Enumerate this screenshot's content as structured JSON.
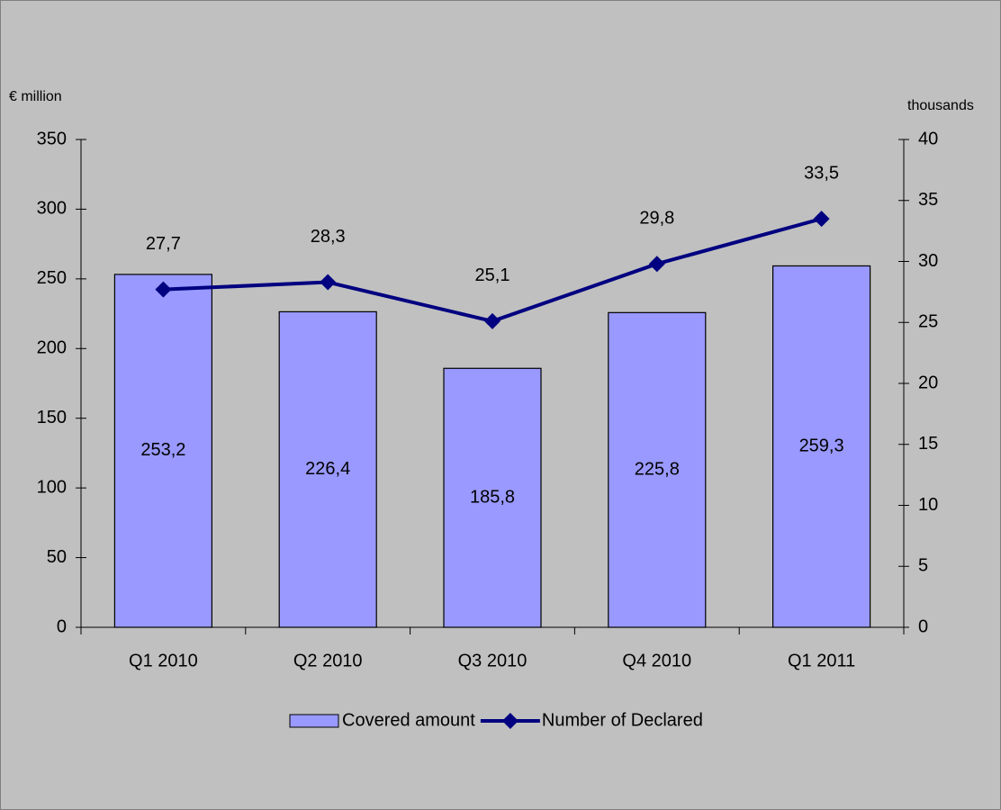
{
  "chart_data": {
    "type": "bar",
    "y_label": "€ million",
    "y2_label": "thousands",
    "categories": [
      "Q1 2010",
      "Q2 2010",
      "Q3 2010",
      "Q4 2010",
      "Q1 2011"
    ],
    "series": [
      {
        "name": "Covered amount",
        "type": "bar",
        "color": "#9999ff",
        "values": [
          253.2,
          226.4,
          185.8,
          225.8,
          259.3
        ],
        "value_labels": [
          "253,2",
          "226,4",
          "185,8",
          "225,8",
          "259,3"
        ]
      },
      {
        "name": "Number of Declared",
        "type": "line",
        "axis": "y2",
        "color": "#000080",
        "values": [
          27.7,
          28.3,
          25.1,
          29.8,
          33.5
        ],
        "value_labels": [
          "27,7",
          "28,3",
          "25,1",
          "29,8",
          "33,5"
        ]
      }
    ],
    "ylim": [
      0,
      350
    ],
    "yticks": [
      0,
      50,
      100,
      150,
      200,
      250,
      300,
      350
    ],
    "y2lim": [
      0,
      40
    ],
    "y2ticks": [
      0,
      5,
      10,
      15,
      20,
      25,
      30,
      35,
      40
    ],
    "legend": "bottom"
  }
}
